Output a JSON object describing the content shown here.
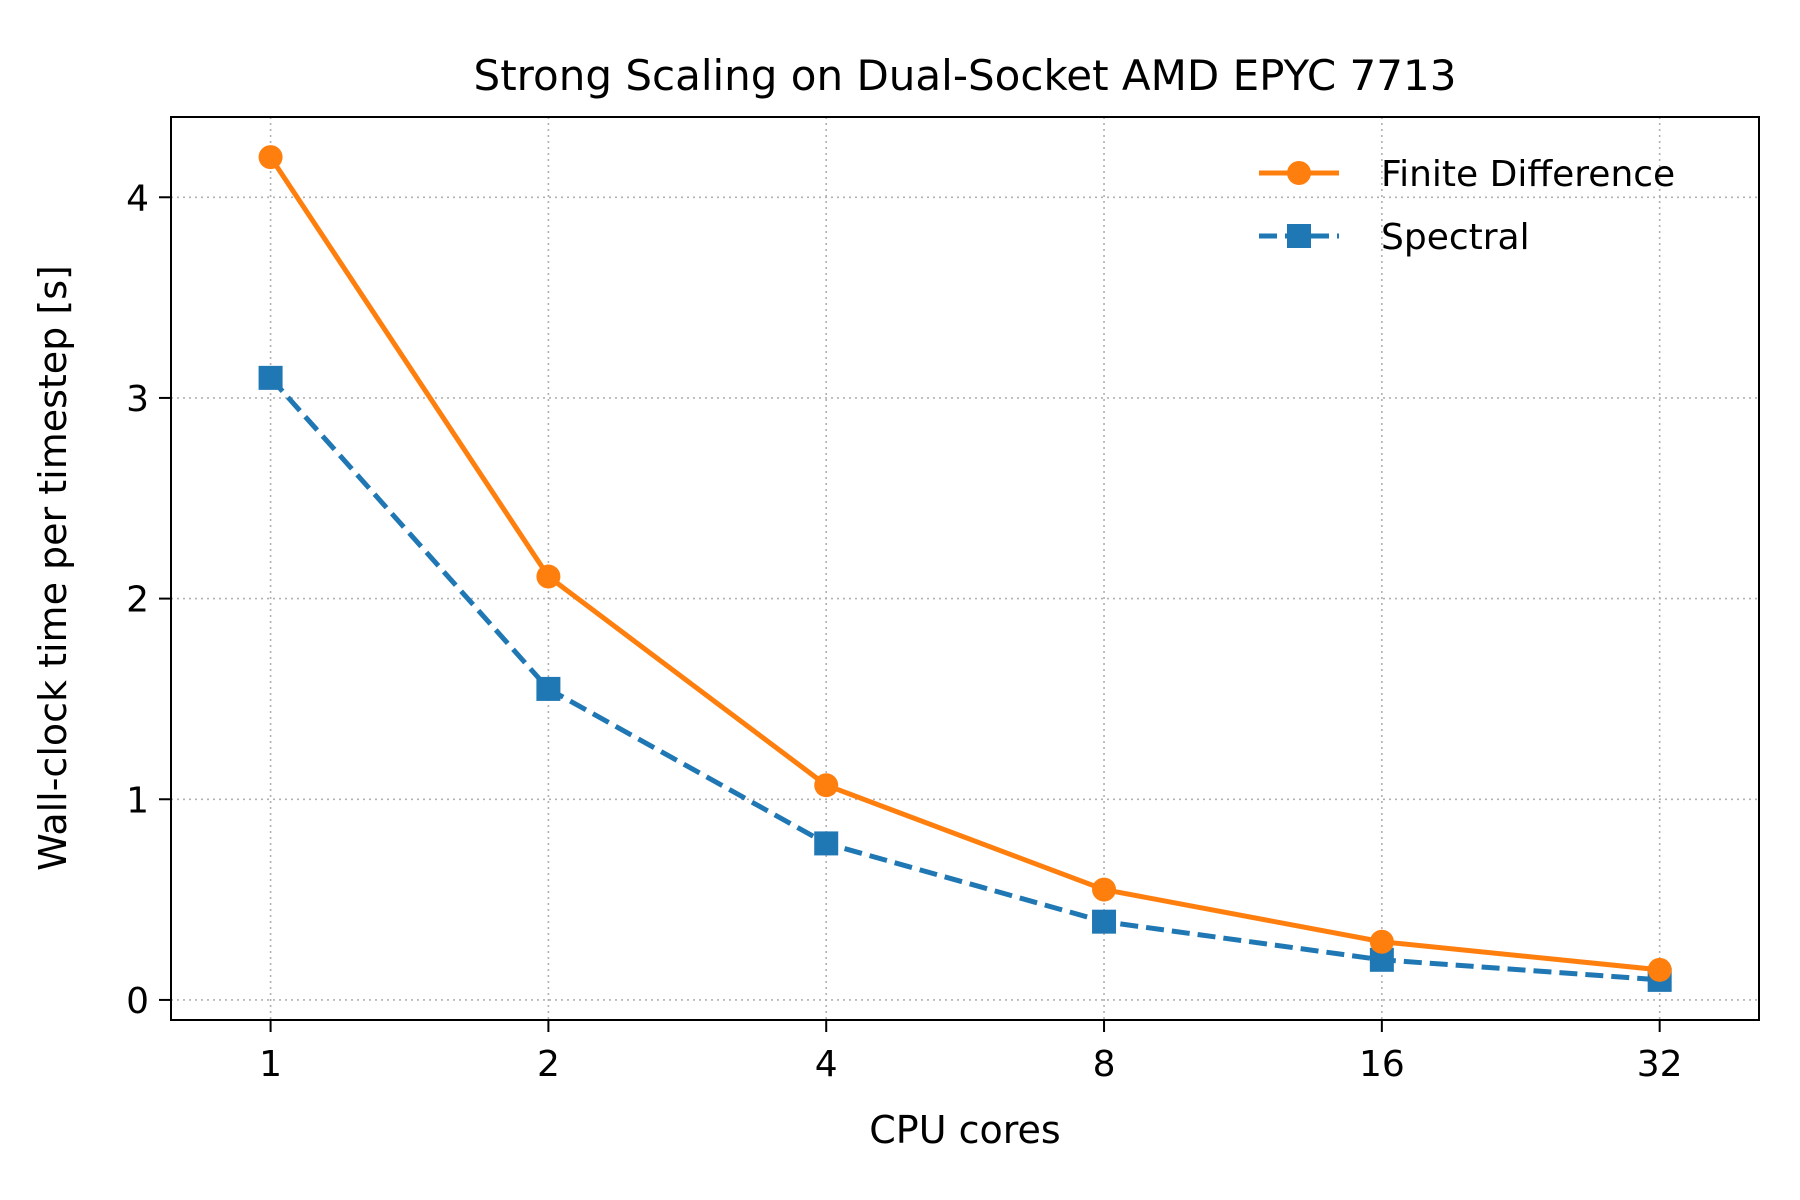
{
  "chart_data": {
    "type": "line",
    "title": "Strong Scaling on Dual-Socket AMD EPYC 7713",
    "xlabel": "CPU cores",
    "ylabel": "Wall-clock time per timestep [s]",
    "x": [
      1,
      2,
      4,
      8,
      16,
      32
    ],
    "x_tick_labels": [
      "1",
      "2",
      "4",
      "8",
      "16",
      "32"
    ],
    "x_scale": "log2",
    "xlim": [
      0.78,
      41.0
    ],
    "ylim": [
      -0.1,
      4.4
    ],
    "y_ticks": [
      0,
      1,
      2,
      3,
      4
    ],
    "y_tick_labels": [
      "0",
      "1",
      "2",
      "3",
      "4"
    ],
    "grid": true,
    "legend_position": "upper right",
    "series": [
      {
        "name": "Finite Difference",
        "values": [
          4.2,
          2.11,
          1.07,
          0.55,
          0.29,
          0.15
        ],
        "color": "#ff7f0e",
        "line_style": "solid",
        "marker": "circle"
      },
      {
        "name": "Spectral",
        "values": [
          3.1,
          1.55,
          0.78,
          0.39,
          0.2,
          0.1
        ],
        "color": "#1f77b4",
        "line_style": "dashed",
        "marker": "square"
      }
    ]
  }
}
